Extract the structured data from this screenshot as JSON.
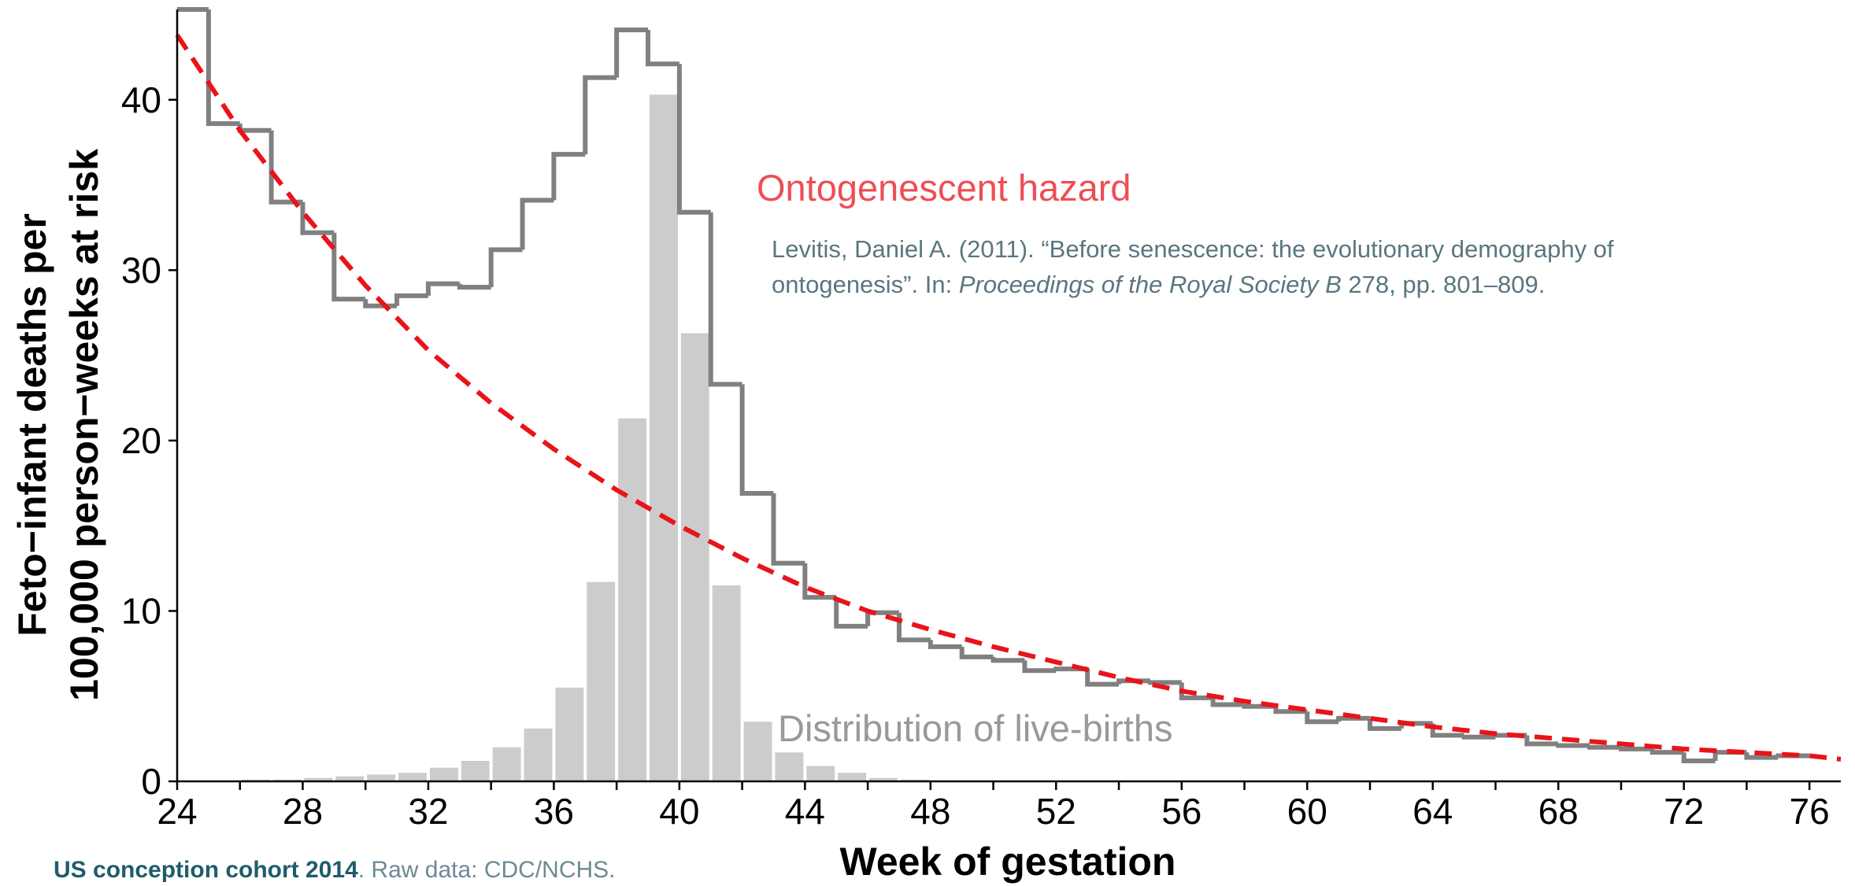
{
  "chart_data": {
    "type": "combo",
    "x_label": "Week of gestation",
    "y_label": [
      "Feto−infant deaths per",
      "100,000 person−weeks at risk"
    ],
    "xlim": [
      24,
      77
    ],
    "ylim": [
      0,
      45.3
    ],
    "xticks": [
      24,
      28,
      32,
      36,
      40,
      44,
      48,
      52,
      56,
      60,
      64,
      68,
      72,
      76
    ],
    "xminorticks": [
      26,
      30,
      34,
      38,
      42,
      46,
      50,
      54,
      58,
      62,
      66,
      70,
      74
    ],
    "yticks": [
      0,
      10,
      20,
      30,
      40
    ],
    "series": [
      {
        "type": "bar",
        "color": "#cccccc",
        "bins": [
          26,
          27,
          28,
          29,
          30,
          31,
          32,
          33,
          34,
          35,
          36,
          37,
          38,
          39,
          40,
          41,
          42,
          43,
          44,
          45,
          46,
          47,
          48
        ],
        "values": [
          0.1,
          0.1,
          0.2,
          0.3,
          0.4,
          0.5,
          0.8,
          1.2,
          2.0,
          3.1,
          5.5,
          11.7,
          21.3,
          40.3,
          26.3,
          11.5,
          3.5,
          1.7,
          0.9,
          0.5,
          0.2,
          0.1
        ]
      },
      {
        "type": "step",
        "color": "#808080",
        "bins": [
          24,
          25,
          26,
          27,
          28,
          29,
          30,
          31,
          32,
          33,
          34,
          35,
          36,
          37,
          38,
          39,
          40,
          41,
          42,
          43,
          44,
          45,
          46,
          47,
          48,
          49,
          50,
          51,
          52,
          53,
          54,
          55,
          56,
          57,
          58,
          59,
          60,
          61,
          62,
          63,
          64,
          65,
          66,
          67,
          68,
          69,
          70,
          71,
          72,
          73,
          74,
          75,
          76
        ],
        "values": [
          45.3,
          38.6,
          38.2,
          34.0,
          32.2,
          28.3,
          27.9,
          28.5,
          29.2,
          29.0,
          31.2,
          34.1,
          36.8,
          41.3,
          44.1,
          42.1,
          33.4,
          23.3,
          16.9,
          12.8,
          10.8,
          9.1,
          9.9,
          8.3,
          7.9,
          7.3,
          7.1,
          6.5,
          6.6,
          5.7,
          5.9,
          5.8,
          4.9,
          4.5,
          4.4,
          4.1,
          3.5,
          3.7,
          3.1,
          3.4,
          2.7,
          2.6,
          2.7,
          2.2,
          2.1,
          2.0,
          1.9,
          1.7,
          1.2,
          1.7,
          1.4,
          1.5
        ]
      },
      {
        "type": "line",
        "color": "#e8141a",
        "dashed": true,
        "x": [
          24,
          26,
          28,
          30,
          32,
          34,
          36,
          38,
          40,
          42,
          44,
          46,
          48,
          50,
          52,
          54,
          56,
          58,
          60,
          62,
          64,
          66,
          68,
          70,
          72,
          74,
          76,
          77
        ],
        "values": [
          43.8,
          38.2,
          33.4,
          29.1,
          25.3,
          22.2,
          19.5,
          17.1,
          15.0,
          13.1,
          11.4,
          10.0,
          8.9,
          7.9,
          7.0,
          6.1,
          5.3,
          4.7,
          4.2,
          3.7,
          3.2,
          2.8,
          2.5,
          2.2,
          1.9,
          1.7,
          1.5,
          1.3
        ]
      }
    ],
    "annotations": {
      "hazard": "Ontogenescent hazard",
      "births": "Distribution of live-births",
      "citation": {
        "line1": "Levitis, Daniel A. (2011). “Before senescence: the evolutionary demography of",
        "line2_a": "ontogenesis”. In: ",
        "line2_italic": "Proceedings of the Royal Society B",
        "line2_b": " 278, pp. 801–809."
      }
    },
    "footnote": {
      "bold": "US conception cohort 2014",
      "rest": ". Raw data: CDC/NCHS."
    }
  }
}
